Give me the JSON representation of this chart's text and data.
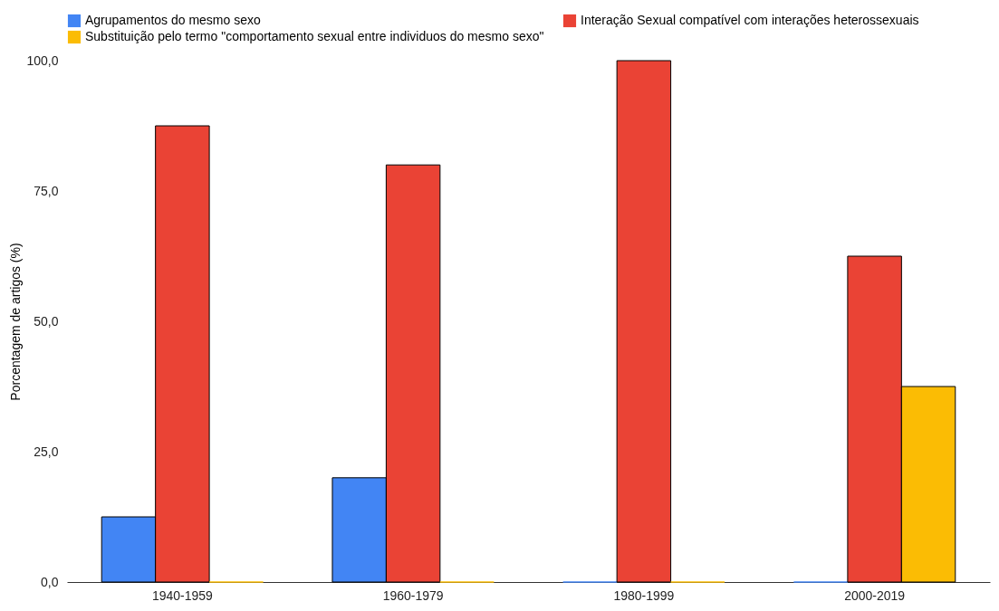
{
  "chart_data": {
    "type": "bar",
    "ylabel": "Porcentagem de artigos (%)",
    "categories": [
      "1940-1959",
      "1960-1979",
      "1980-1999",
      "2000-2019"
    ],
    "series": [
      {
        "name": "Agrupamentos do mesmo sexo",
        "color": "#4285f4",
        "values": [
          12.5,
          20,
          0,
          0
        ]
      },
      {
        "name": "Interação Sexual compatível com interações heterossexuais",
        "color": "#ea4335",
        "values": [
          87.5,
          80,
          100,
          62.5
        ]
      },
      {
        "name": "Substituição pelo termo \"comportamento sexual entre individuos do mesmo sexo\"",
        "color": "#fbbc04",
        "values": [
          0,
          0,
          0,
          37.5
        ]
      }
    ],
    "ylim": [
      0,
      100
    ],
    "yticks": [
      {
        "value": 0,
        "label": "0,0"
      },
      {
        "value": 25,
        "label": "25,0"
      },
      {
        "value": 50,
        "label": "50,0"
      },
      {
        "value": 75,
        "label": "75,0"
      },
      {
        "value": 100,
        "label": "100,0"
      }
    ],
    "grid": false,
    "legend": "top"
  }
}
